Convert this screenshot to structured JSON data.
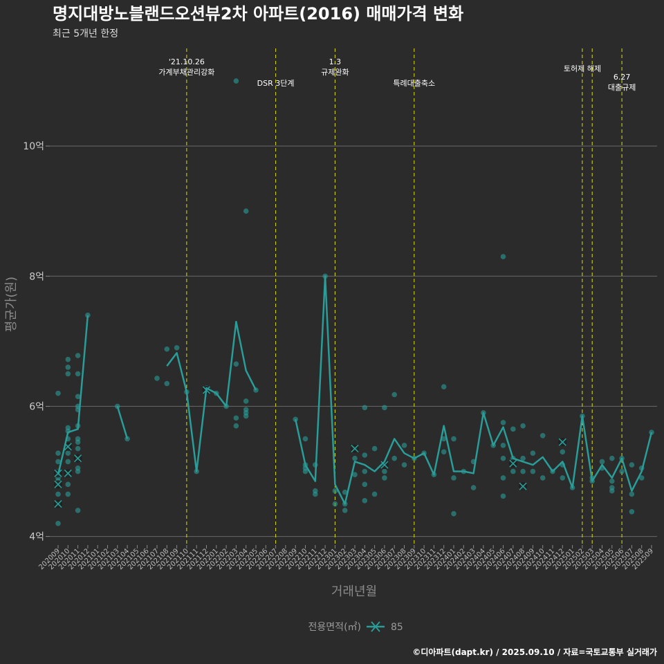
{
  "chart_data": {
    "type": "line",
    "title": "명지대방노블랜드오션뷰2차 아파트(2016) 매매가격 변화",
    "subtitle": "최근 5개년 한정",
    "xlabel": "거래년월",
    "ylabel": "평균가(원)",
    "ylim": [
      3.9,
      11.5
    ],
    "yticks": [
      {
        "v": 4,
        "label": "4억"
      },
      {
        "v": 6,
        "label": "6억"
      },
      {
        "v": 8,
        "label": "8억"
      },
      {
        "v": 10,
        "label": "10억"
      }
    ],
    "grid": true,
    "categories": [
      "202009",
      "202010",
      "202011",
      "202012",
      "202101",
      "202102",
      "202103",
      "202104",
      "202105",
      "202106",
      "202107",
      "202108",
      "202109",
      "202110",
      "202111",
      "202112",
      "202201",
      "202202",
      "202203",
      "202204",
      "202205",
      "202206",
      "202207",
      "202208",
      "202209",
      "202210",
      "202211",
      "202212",
      "202301",
      "202302",
      "202303",
      "202304",
      "202305",
      "202306",
      "202307",
      "202308",
      "202309",
      "202310",
      "202311",
      "202312",
      "202401",
      "202402",
      "202403",
      "202404",
      "202405",
      "202406",
      "202407",
      "202408",
      "202409",
      "202410",
      "202411",
      "202412",
      "202501",
      "202502",
      "202503",
      "202504",
      "202505",
      "202506",
      "202507",
      "202508",
      "202509"
    ],
    "series": [
      {
        "name": "85",
        "color": "#2a9d98",
        "mean": [
          [
            0,
            4.95
          ],
          [
            1,
            5.6
          ],
          [
            2,
            5.65
          ],
          [
            3,
            7.4
          ],
          null,
          [
            6,
            6.0
          ],
          [
            7,
            5.5
          ],
          null,
          [
            11,
            6.62
          ],
          [
            12,
            6.82
          ],
          [
            13,
            6.22
          ],
          [
            14,
            5.0
          ],
          [
            15,
            6.28
          ],
          [
            16,
            6.2
          ],
          [
            17,
            6.0
          ],
          [
            18,
            7.3
          ],
          [
            19,
            6.55
          ],
          [
            20,
            6.25
          ],
          null,
          [
            24,
            5.8
          ],
          [
            25,
            5.1
          ],
          [
            26,
            4.85
          ],
          [
            27,
            8.0
          ],
          [
            28,
            4.8
          ],
          [
            29,
            4.5
          ],
          [
            30,
            5.15
          ],
          [
            31,
            5.1
          ],
          [
            32,
            5.0
          ],
          [
            33,
            5.15
          ],
          [
            34,
            5.5
          ],
          [
            35,
            5.28
          ],
          [
            36,
            5.2
          ],
          [
            37,
            5.28
          ],
          [
            38,
            4.95
          ],
          [
            39,
            5.7
          ],
          [
            40,
            5.0
          ],
          [
            41,
            5.0
          ],
          [
            42,
            4.97
          ],
          [
            43,
            5.9
          ],
          [
            44,
            5.4
          ],
          [
            45,
            5.68
          ],
          [
            46,
            5.2
          ],
          [
            47,
            5.15
          ],
          [
            48,
            5.1
          ],
          [
            49,
            5.22
          ],
          [
            50,
            5.0
          ],
          [
            51,
            5.15
          ],
          [
            52,
            4.75
          ],
          [
            53,
            5.85
          ],
          [
            54,
            4.85
          ],
          [
            55,
            5.1
          ],
          [
            56,
            4.9
          ],
          [
            57,
            5.2
          ],
          [
            58,
            4.7
          ],
          [
            59,
            5.0
          ],
          [
            60,
            5.6
          ]
        ],
        "points": [
          [
            0,
            4.2
          ],
          [
            0,
            4.5
          ],
          [
            0,
            4.65
          ],
          [
            0,
            4.8
          ],
          [
            0,
            4.85
          ],
          [
            0,
            4.9
          ],
          [
            0,
            4.95
          ],
          [
            0,
            5.0
          ],
          [
            0,
            5.15
          ],
          [
            0,
            5.28
          ],
          [
            0,
            6.2
          ],
          [
            1,
            4.65
          ],
          [
            1,
            4.8
          ],
          [
            1,
            4.95
          ],
          [
            1,
            5.15
          ],
          [
            1,
            5.28
          ],
          [
            1,
            5.38
          ],
          [
            1,
            5.5
          ],
          [
            1,
            5.62
          ],
          [
            1,
            5.67
          ],
          [
            1,
            6.5
          ],
          [
            1,
            6.6
          ],
          [
            1,
            6.72
          ],
          [
            2,
            4.4
          ],
          [
            2,
            5.0
          ],
          [
            2,
            5.05
          ],
          [
            2,
            5.2
          ],
          [
            2,
            5.35
          ],
          [
            2,
            5.45
          ],
          [
            2,
            5.5
          ],
          [
            2,
            5.7
          ],
          [
            2,
            5.95
          ],
          [
            2,
            6.0
          ],
          [
            2,
            6.15
          ],
          [
            2,
            6.5
          ],
          [
            2,
            6.78
          ],
          [
            3,
            7.4
          ],
          [
            6,
            6.0
          ],
          [
            7,
            5.5
          ],
          [
            10,
            6.43
          ],
          [
            12,
            6.9
          ],
          [
            11,
            6.35
          ],
          [
            11,
            6.88
          ],
          [
            13,
            6.22
          ],
          [
            14,
            5.0
          ],
          [
            15,
            6.28
          ],
          [
            16,
            6.2
          ],
          [
            17,
            6.0
          ],
          [
            18,
            5.7
          ],
          [
            18,
            5.82
          ],
          [
            18,
            6.65
          ],
          [
            18,
            11.0
          ],
          [
            19,
            5.85
          ],
          [
            19,
            5.9
          ],
          [
            19,
            5.95
          ],
          [
            19,
            6.08
          ],
          [
            19,
            9.0
          ],
          [
            20,
            6.25
          ],
          [
            24,
            5.8
          ],
          [
            25,
            5.0
          ],
          [
            25,
            5.05
          ],
          [
            25,
            5.1
          ],
          [
            25,
            5.5
          ],
          [
            26,
            4.65
          ],
          [
            26,
            4.7
          ],
          [
            26,
            5.1
          ],
          [
            27,
            8.0
          ],
          [
            28,
            4.5
          ],
          [
            28,
            4.7
          ],
          [
            29,
            4.4
          ],
          [
            29,
            4.5
          ],
          [
            29,
            4.68
          ],
          [
            30,
            4.95
          ],
          [
            30,
            5.2
          ],
          [
            30,
            5.35
          ],
          [
            31,
            4.55
          ],
          [
            31,
            4.8
          ],
          [
            31,
            5.0
          ],
          [
            31,
            5.25
          ],
          [
            31,
            5.98
          ],
          [
            32,
            4.65
          ],
          [
            32,
            5.35
          ],
          [
            33,
            4.9
          ],
          [
            33,
            5.0
          ],
          [
            33,
            5.1
          ],
          [
            33,
            5.98
          ],
          [
            34,
            5.2
          ],
          [
            34,
            6.18
          ],
          [
            35,
            5.1
          ],
          [
            35,
            5.4
          ],
          [
            36,
            5.2
          ],
          [
            37,
            5.28
          ],
          [
            38,
            4.95
          ],
          [
            39,
            5.3
          ],
          [
            39,
            5.5
          ],
          [
            39,
            6.3
          ],
          [
            40,
            4.35
          ],
          [
            40,
            4.9
          ],
          [
            40,
            5.5
          ],
          [
            41,
            5.0
          ],
          [
            42,
            4.75
          ],
          [
            42,
            5.15
          ],
          [
            43,
            5.9
          ],
          [
            44,
            5.4
          ],
          [
            45,
            4.62
          ],
          [
            45,
            4.9
          ],
          [
            45,
            5.2
          ],
          [
            45,
            5.4
          ],
          [
            45,
            5.75
          ],
          [
            45,
            8.3
          ],
          [
            46,
            5.0
          ],
          [
            46,
            5.2
          ],
          [
            46,
            5.65
          ],
          [
            47,
            4.75
          ],
          [
            47,
            5.0
          ],
          [
            47,
            5.2
          ],
          [
            47,
            5.7
          ],
          [
            48,
            5.0
          ],
          [
            48,
            5.28
          ],
          [
            49,
            4.9
          ],
          [
            49,
            5.55
          ],
          [
            50,
            5.0
          ],
          [
            51,
            4.9
          ],
          [
            51,
            5.1
          ],
          [
            51,
            5.3
          ],
          [
            51,
            5.45
          ],
          [
            52,
            4.75
          ],
          [
            53,
            5.85
          ],
          [
            54,
            4.85
          ],
          [
            54,
            4.9
          ],
          [
            55,
            5.05
          ],
          [
            55,
            5.15
          ],
          [
            56,
            4.7
          ],
          [
            56,
            4.75
          ],
          [
            56,
            4.85
          ],
          [
            56,
            5.2
          ],
          [
            57,
            5.0
          ],
          [
            57,
            5.2
          ],
          [
            58,
            4.38
          ],
          [
            58,
            4.65
          ],
          [
            58,
            5.1
          ],
          [
            59,
            4.9
          ],
          [
            59,
            5.05
          ],
          [
            60,
            5.6
          ]
        ],
        "crosses": [
          [
            0,
            4.5
          ],
          [
            0,
            4.8
          ],
          [
            0,
            4.97
          ],
          [
            1,
            4.97
          ],
          [
            1,
            5.38
          ],
          [
            2,
            5.2
          ],
          [
            15,
            6.25
          ],
          [
            30,
            5.35
          ],
          [
            33,
            5.1
          ],
          [
            46,
            5.12
          ],
          [
            47,
            4.77
          ],
          [
            51,
            5.45
          ]
        ]
      }
    ],
    "events": [
      {
        "x": 13.0,
        "lines": [
          "'21.10.26",
          "가계부채관리강화"
        ],
        "pos": "high"
      },
      {
        "x": 22.0,
        "lines": [
          "DSR 3단계"
        ],
        "pos": "low"
      },
      {
        "x": 28.0,
        "lines": [
          "1.3",
          "규제완화"
        ],
        "pos": "high"
      },
      {
        "x": 36.0,
        "lines": [
          "특례대출축소"
        ],
        "pos": "low"
      },
      {
        "x": 53.0,
        "lines": [
          "토허제 해제"
        ],
        "pos": "mid"
      },
      {
        "x": 54.0,
        "lines": [],
        "pos": "none"
      },
      {
        "x": 57.0,
        "lines": [
          "6.27",
          "대출규제"
        ],
        "pos": "lower"
      }
    ],
    "legend": {
      "title": "전용면적(㎡)",
      "label": "85",
      "placement": "bottom"
    }
  },
  "caption": "©디아파트(dapt.kr) / 2025.09.10 / 자료=국토교통부 실거래가"
}
